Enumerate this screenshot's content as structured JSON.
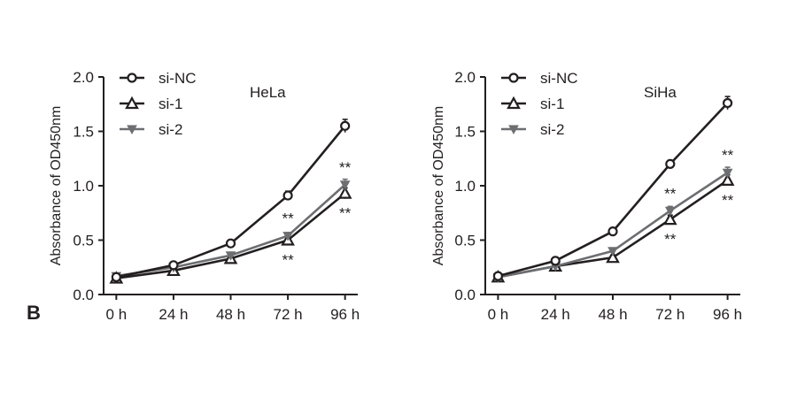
{
  "figure": {
    "panel_label": "B"
  },
  "chart_data": [
    {
      "type": "line",
      "annotation": "HeLa",
      "x": [
        "0 h",
        "24 h",
        "48 h",
        "72 h",
        "96 h"
      ],
      "xlabel": "",
      "ylabel": "Absorbance of OD450nm",
      "ylim": [
        0,
        2.0
      ],
      "yticks": [
        "0.0",
        "0.5",
        "1.0",
        "1.5",
        "2.0"
      ],
      "grid": false,
      "legend": "top-left",
      "series": [
        {
          "name": "si-NC",
          "marker": "open-circle",
          "color": "#231f20",
          "values": [
            0.16,
            0.27,
            0.47,
            0.91,
            1.55
          ],
          "errors": [
            0.02,
            0.02,
            0.03,
            0.04,
            0.06
          ]
        },
        {
          "name": "si-1",
          "marker": "open-triangle",
          "color": "#231f20",
          "values": [
            0.15,
            0.22,
            0.33,
            0.5,
            0.93
          ],
          "errors": [
            0.02,
            0.02,
            0.02,
            0.03,
            0.05
          ]
        },
        {
          "name": "si-2",
          "marker": "down-triangle",
          "color": "#6d6e71",
          "values": [
            0.17,
            0.25,
            0.36,
            0.54,
            1.01
          ],
          "errors": [
            0.02,
            0.02,
            0.02,
            0.03,
            0.05
          ]
        }
      ],
      "significance": [
        {
          "x": "72 h",
          "label": "**",
          "series": "si-2",
          "position": "above"
        },
        {
          "x": "72 h",
          "label": "**",
          "series": "si-1",
          "position": "below"
        },
        {
          "x": "96 h",
          "label": "**",
          "series": "si-2",
          "position": "above"
        },
        {
          "x": "96 h",
          "label": "**",
          "series": "si-1",
          "position": "below"
        }
      ]
    },
    {
      "type": "line",
      "annotation": "SiHa",
      "x": [
        "0 h",
        "24 h",
        "48 h",
        "72 h",
        "96 h"
      ],
      "xlabel": "",
      "ylabel": "Absorbance of OD450nm",
      "ylim": [
        0,
        2.0
      ],
      "yticks": [
        "0.0",
        "0.5",
        "1.0",
        "1.5",
        "2.0"
      ],
      "grid": false,
      "legend": "top-left",
      "series": [
        {
          "name": "si-NC",
          "marker": "open-circle",
          "color": "#231f20",
          "values": [
            0.17,
            0.31,
            0.58,
            1.2,
            1.76
          ],
          "errors": [
            0.01,
            0.02,
            0.02,
            0.02,
            0.06
          ]
        },
        {
          "name": "si-1",
          "marker": "open-triangle",
          "color": "#231f20",
          "values": [
            0.16,
            0.26,
            0.34,
            0.69,
            1.05
          ],
          "errors": [
            0.01,
            0.02,
            0.02,
            0.04,
            0.05
          ]
        },
        {
          "name": "si-2",
          "marker": "down-triangle",
          "color": "#6d6e71",
          "values": [
            0.16,
            0.26,
            0.4,
            0.77,
            1.12
          ],
          "errors": [
            0.01,
            0.02,
            0.02,
            0.04,
            0.05
          ]
        }
      ],
      "significance": [
        {
          "x": "72 h",
          "label": "**",
          "series": "si-2",
          "position": "above"
        },
        {
          "x": "72 h",
          "label": "**",
          "series": "si-1",
          "position": "below"
        },
        {
          "x": "96 h",
          "label": "**",
          "series": "si-2",
          "position": "above"
        },
        {
          "x": "96 h",
          "label": "**",
          "series": "si-1",
          "position": "below"
        }
      ]
    }
  ]
}
